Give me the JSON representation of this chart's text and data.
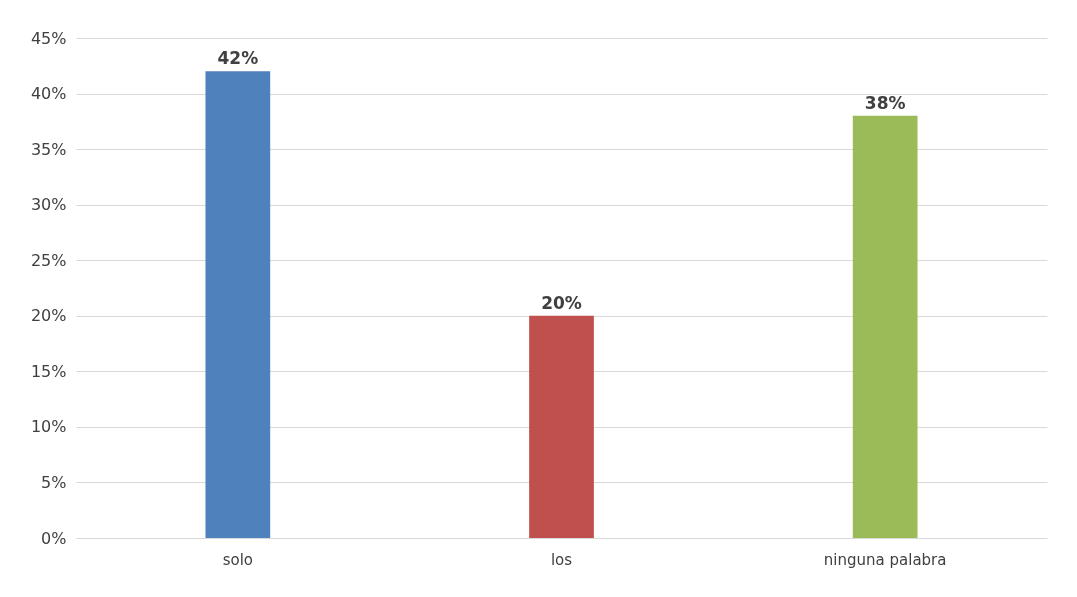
{
  "chart_data": {
    "type": "bar",
    "categories": [
      "solo",
      "los",
      "ninguna palabra"
    ],
    "values": [
      42,
      20,
      38
    ],
    "colors": [
      "#4f81bd",
      "#c0504d",
      "#9bbb59"
    ],
    "value_labels": [
      "42%",
      "20%",
      "38%"
    ],
    "ylim": [
      0,
      45
    ],
    "yticks": [
      {
        "value": 0,
        "label": "0%"
      },
      {
        "value": 5,
        "label": "5%"
      },
      {
        "value": 10,
        "label": "10%"
      },
      {
        "value": 15,
        "label": "15%"
      },
      {
        "value": 20,
        "label": "20%"
      },
      {
        "value": 25,
        "label": "25%"
      },
      {
        "value": 30,
        "label": "30%"
      },
      {
        "value": 35,
        "label": "35%"
      },
      {
        "value": 40,
        "label": "40%"
      },
      {
        "value": 45,
        "label": "45%"
      }
    ],
    "grid": "y",
    "legend": false
  }
}
